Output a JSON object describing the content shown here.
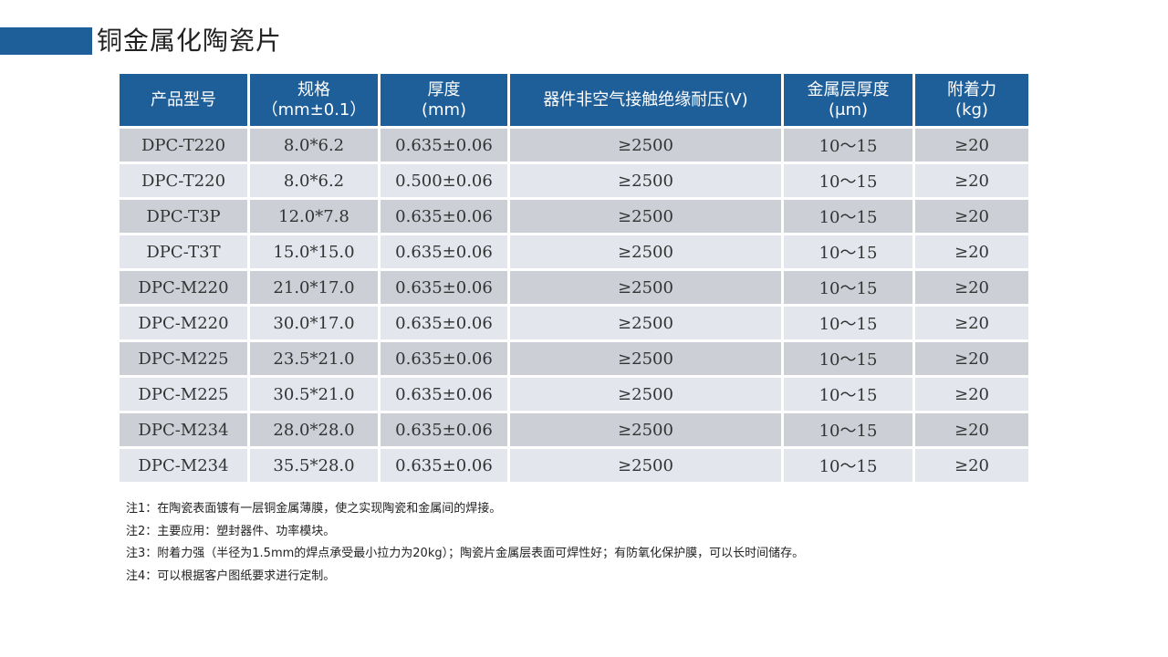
{
  "title": "铜金属化陶瓷片",
  "accent_color": "#1f5f99",
  "table": {
    "headers": [
      [
        "产品型号",
        ""
      ],
      [
        "规格",
        "（mm±0.1）"
      ],
      [
        "厚度",
        "(mm)"
      ],
      [
        "器件非空气接触绝缘耐压(V)",
        ""
      ],
      [
        "金属层厚度",
        "(μm)"
      ],
      [
        "附着力",
        "(kg)"
      ]
    ],
    "rows": [
      [
        "DPC-T220",
        "8.0*6.2",
        "0.635±0.06",
        "≥2500",
        "10～15",
        "≥20"
      ],
      [
        "DPC-T220",
        "8.0*6.2",
        "0.500±0.06",
        "≥2500",
        "10～15",
        "≥20"
      ],
      [
        "DPC-T3P",
        "12.0*7.8",
        "0.635±0.06",
        "≥2500",
        "10～15",
        "≥20"
      ],
      [
        "DPC-T3T",
        "15.0*15.0",
        "0.635±0.06",
        "≥2500",
        "10～15",
        "≥20"
      ],
      [
        "DPC-M220",
        "21.0*17.0",
        "0.635±0.06",
        "≥2500",
        "10～15",
        "≥20"
      ],
      [
        "DPC-M220",
        "30.0*17.0",
        "0.635±0.06",
        "≥2500",
        "10～15",
        "≥20"
      ],
      [
        "DPC-M225",
        "23.5*21.0",
        "0.635±0.06",
        "≥2500",
        "10～15",
        "≥20"
      ],
      [
        "DPC-M225",
        "30.5*21.0",
        "0.635±0.06",
        "≥2500",
        "10～15",
        "≥20"
      ],
      [
        "DPC-M234",
        "28.0*28.0",
        "0.635±0.06",
        "≥2500",
        "10～15",
        "≥20"
      ],
      [
        "DPC-M234",
        "35.5*28.0",
        "0.635±0.06",
        "≥2500",
        "10～15",
        "≥20"
      ]
    ]
  },
  "notes": [
    "注1：在陶瓷表面镀有一层铜金属薄膜，使之实现陶瓷和金属间的焊接。",
    "注2：主要应用：塑封器件、功率模块。",
    "注3：附着力强（半径为1.5mm的焊点承受最小拉力为20kg）；陶瓷片金属层表面可焊性好；有防氧化保护膜，可以长时间储存。",
    "注4：可以根据客户图纸要求进行定制。"
  ]
}
